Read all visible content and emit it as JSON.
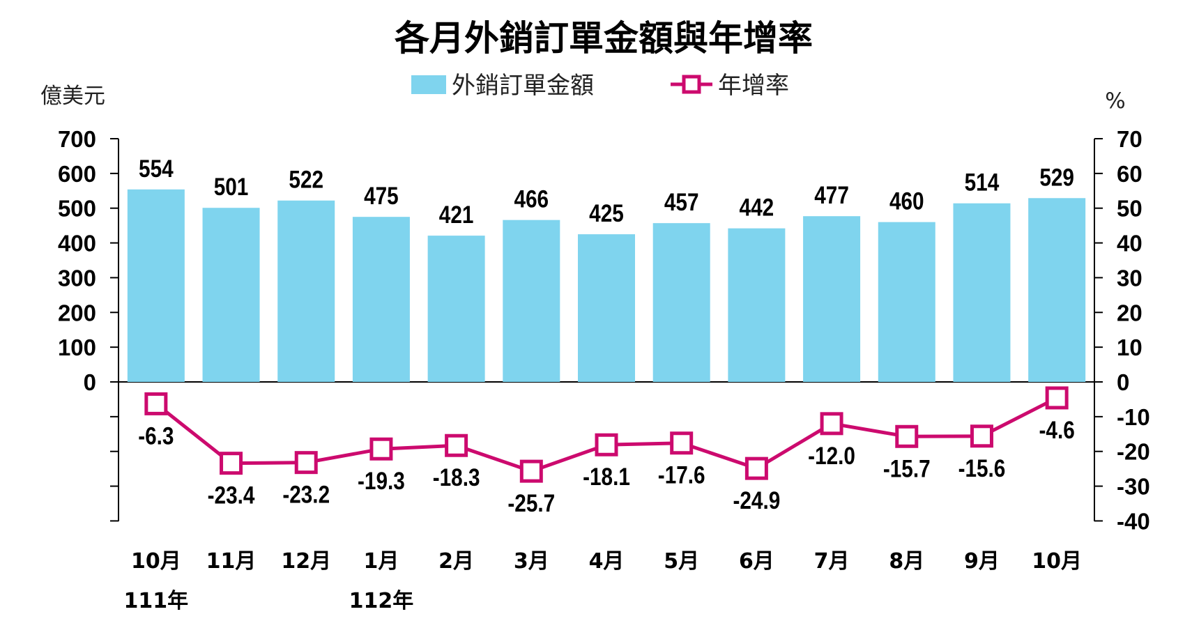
{
  "chart_data": {
    "type": "bar+line",
    "title": "各月外銷訂單金額與年增率",
    "categories": [
      "10月",
      "11月",
      "12月",
      "1月",
      "2月",
      "3月",
      "4月",
      "5月",
      "6月",
      "7月",
      "8月",
      "9月",
      "10月"
    ],
    "year_labels": [
      {
        "index": 0,
        "label": "111年"
      },
      {
        "index": 3,
        "label": "112年"
      }
    ],
    "left_axis": {
      "unit": "億美元",
      "ticks": [
        "700",
        "600",
        "500",
        "400",
        "300",
        "200",
        "100",
        "0"
      ],
      "range": [
        -400,
        700
      ]
    },
    "right_axis": {
      "unit": "%",
      "ticks": [
        "70",
        "60",
        "50",
        "40",
        "30",
        "20",
        "10",
        "0",
        "-10",
        "-20",
        "-30",
        "-40"
      ],
      "range": [
        -40,
        70
      ]
    },
    "series": [
      {
        "name": "外銷訂單金額",
        "type": "bar",
        "axis": "left",
        "color": "#7fd4ee",
        "values": [
          554,
          501,
          522,
          475,
          421,
          466,
          425,
          457,
          442,
          477,
          460,
          514,
          529
        ],
        "labels": [
          "554",
          "501",
          "522",
          "475",
          "421",
          "466",
          "425",
          "457",
          "442",
          "477",
          "460",
          "514",
          "529"
        ]
      },
      {
        "name": "年增率",
        "type": "line",
        "axis": "right",
        "color": "#cc0a6e",
        "values": [
          -6.3,
          -23.4,
          -23.2,
          -19.3,
          -18.3,
          -25.7,
          -18.1,
          -17.6,
          -24.9,
          -12.0,
          -15.7,
          -15.6,
          -4.6
        ],
        "labels": [
          "-6.3",
          "-23.4",
          "-23.2",
          "-19.3",
          "-18.3",
          "-25.7",
          "-18.1",
          "-17.6",
          "-24.9",
          "-12.0",
          "-15.7",
          "-15.6",
          "-4.6"
        ]
      }
    ],
    "legend_position": "top-center",
    "grid": false
  }
}
